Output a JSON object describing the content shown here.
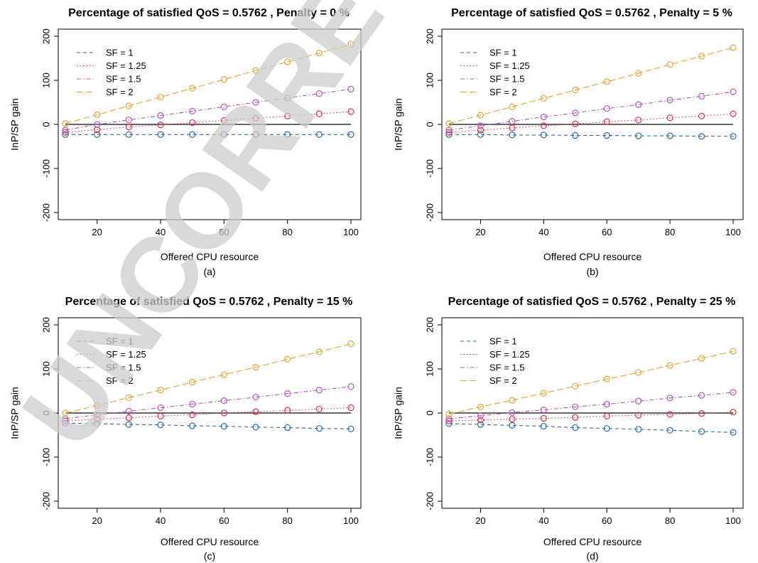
{
  "watermark": "UNCORRECTED",
  "colors": {
    "SF = 1": "#2b6cb0",
    "SF = 1.25": "#e0314b",
    "SF = 1.5": "#b455b6",
    "SF = 2": "#e2a533",
    "zero_line": "#333333"
  },
  "chart_data": [
    {
      "type": "line",
      "title": "Percentage of satisfied QoS =  0.5762 , Penalty =  0 %",
      "xlabel": "Offered CPU resource",
      "ylabel": "InP/SP gain",
      "sublabel": "(a)",
      "xlim": [
        10,
        100
      ],
      "ylim": [
        -200,
        200
      ],
      "xticks": [
        20,
        40,
        60,
        80,
        100
      ],
      "yticks": [
        -200,
        -100,
        0,
        100,
        200
      ],
      "x": [
        10,
        20,
        30,
        40,
        50,
        60,
        70,
        80,
        90,
        100
      ],
      "legend_position": "top-left",
      "series": [
        {
          "name": "SF =  1",
          "values": [
            -23,
            -23,
            -23,
            -23,
            -23,
            -23,
            -23,
            -23,
            -23,
            -23
          ]
        },
        {
          "name": "SF =  1.25",
          "values": [
            -18,
            -12,
            -6,
            -1,
            4,
            9,
            14,
            19,
            24,
            29
          ]
        },
        {
          "name": "SF =  1.5",
          "values": [
            -13,
            0,
            10,
            20,
            30,
            40,
            50,
            60,
            70,
            80
          ]
        },
        {
          "name": "SF =  2",
          "values": [
            2,
            22,
            42,
            62,
            82,
            102,
            122,
            142,
            162,
            182
          ]
        }
      ]
    },
    {
      "type": "line",
      "title": "Percentage of satisfied QoS =  0.5762 , Penalty =  5 %",
      "xlabel": "Offered CPU resource",
      "ylabel": "InP/SP gain",
      "sublabel": "(b)",
      "xlim": [
        10,
        100
      ],
      "ylim": [
        -200,
        200
      ],
      "xticks": [
        20,
        40,
        60,
        80,
        100
      ],
      "yticks": [
        -200,
        -100,
        0,
        100,
        200
      ],
      "x": [
        10,
        20,
        30,
        40,
        50,
        60,
        70,
        80,
        90,
        100
      ],
      "legend_position": "top-left",
      "series": [
        {
          "name": "SF =  1",
          "values": [
            -23,
            -23,
            -24,
            -24,
            -25,
            -25,
            -26,
            -26,
            -27,
            -27
          ]
        },
        {
          "name": "SF =  1.25",
          "values": [
            -18,
            -13,
            -8,
            -3,
            1,
            6,
            10,
            15,
            19,
            24
          ]
        },
        {
          "name": "SF =  1.5",
          "values": [
            -13,
            -3,
            7,
            17,
            26,
            36,
            45,
            55,
            64,
            74
          ]
        },
        {
          "name": "SF =  2",
          "values": [
            2,
            21,
            40,
            59,
            78,
            97,
            116,
            136,
            155,
            174
          ]
        }
      ]
    },
    {
      "type": "line",
      "title": "Percentage of satisfied QoS =  0.5762 , Penalty =  15 %",
      "xlabel": "Offered CPU resource",
      "ylabel": "InP/SP gain",
      "sublabel": "(c)",
      "xlim": [
        10,
        100
      ],
      "ylim": [
        -200,
        200
      ],
      "xticks": [
        20,
        40,
        60,
        80,
        100
      ],
      "yticks": [
        -200,
        -100,
        0,
        100,
        200
      ],
      "x": [
        10,
        20,
        30,
        40,
        50,
        60,
        70,
        80,
        90,
        100
      ],
      "legend_position": "top-left",
      "series": [
        {
          "name": "SF =  1",
          "values": [
            -23,
            -24,
            -26,
            -27,
            -29,
            -30,
            -32,
            -33,
            -35,
            -36
          ]
        },
        {
          "name": "SF =  1.25",
          "values": [
            -18,
            -14,
            -11,
            -7,
            -4,
            0,
            3,
            6,
            9,
            12
          ]
        },
        {
          "name": "SF =  1.5",
          "values": [
            -13,
            -4,
            4,
            12,
            20,
            28,
            36,
            44,
            52,
            60
          ]
        },
        {
          "name": "SF =  2",
          "values": [
            0,
            17,
            35,
            52,
            70,
            87,
            104,
            122,
            139,
            157
          ]
        }
      ]
    },
    {
      "type": "line",
      "title": "Percentage of satisfied QoS =  0.5762 , Penalty =  25 %",
      "xlabel": "Offered CPU resource",
      "ylabel": "InP/SP gain",
      "sublabel": "(d)",
      "xlim": [
        10,
        100
      ],
      "ylim": [
        -200,
        200
      ],
      "xticks": [
        20,
        40,
        60,
        80,
        100
      ],
      "yticks": [
        -200,
        -100,
        0,
        100,
        200
      ],
      "x": [
        10,
        20,
        30,
        40,
        50,
        60,
        70,
        80,
        90,
        100
      ],
      "legend_position": "top-left",
      "series": [
        {
          "name": "SF =  1",
          "values": [
            -24,
            -26,
            -28,
            -30,
            -33,
            -35,
            -37,
            -39,
            -42,
            -44
          ]
        },
        {
          "name": "SF =  1.25",
          "values": [
            -18,
            -16,
            -14,
            -12,
            -10,
            -7,
            -5,
            -3,
            -1,
            2
          ]
        },
        {
          "name": "SF =  1.5",
          "values": [
            -13,
            -6,
            1,
            7,
            14,
            20,
            27,
            34,
            40,
            47
          ]
        },
        {
          "name": "SF =  2",
          "values": [
            -2,
            14,
            29,
            45,
            61,
            77,
            92,
            108,
            124,
            140
          ]
        }
      ]
    }
  ]
}
